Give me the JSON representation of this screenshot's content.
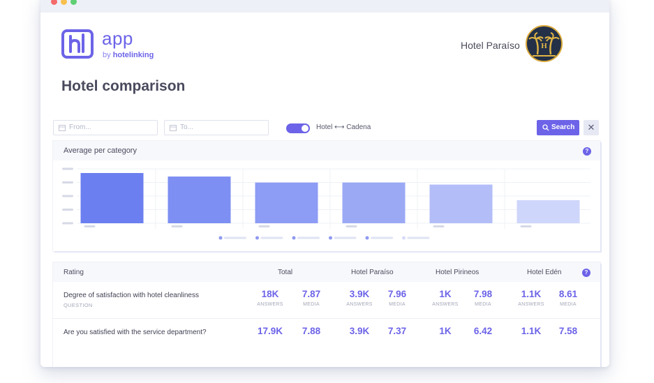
{
  "window": {
    "controls": [
      "close",
      "minimize",
      "maximize"
    ]
  },
  "logo": {
    "mark": "hl",
    "app": "app",
    "by": "by",
    "brand": "hotelinking"
  },
  "hotel": {
    "name": "Hotel Paraíso",
    "avatar_icon": "palm-trees-icon",
    "avatar_letter": "H"
  },
  "page_title": "Hotel comparison",
  "filters": {
    "from_placeholder": "From...",
    "to_placeholder": "To...",
    "toggle_label": "Hotel ⟷ Cadena",
    "toggle_on": true,
    "search_label": "Search",
    "clear_label": "✕"
  },
  "chart_card": {
    "title": "Average per category",
    "help": "?"
  },
  "chart_data": {
    "type": "bar",
    "values": [
      1.0,
      0.93,
      0.81,
      0.81,
      0.77,
      0.46
    ],
    "colors": [
      "#6b7ff0",
      "#7d8ff2",
      "#8d9cf4",
      "#9ba9f5",
      "#b3bef8",
      "#cfd6fb"
    ],
    "grid": true,
    "legend_placement": "bottom"
  },
  "table": {
    "headers": {
      "rating": "Rating",
      "total": "Total",
      "h1": "Hotel Paraíso",
      "h2": "Hotel Pirineos",
      "h3": "Hotel Edén"
    },
    "help": "?",
    "rows": [
      {
        "question": "Degree of satisfaction with hotel cleanliness",
        "sub": "QUESTION",
        "total_answers": "18K",
        "total_media": "7.87",
        "h1_answers": "3.9K",
        "h1_media": "7.96",
        "h2_answers": "1K",
        "h2_media": "7.98",
        "h3_answers": "1.1K",
        "h3_media": "8.61"
      },
      {
        "question": "Are you satisfied with the service department?",
        "total_answers": "17.9K",
        "total_media": "7.88",
        "h1_answers": "3.9K",
        "h1_media": "7.37",
        "h2_answers": "1K",
        "h2_media": "6.42",
        "h3_answers": "1.1K",
        "h3_media": "7.58"
      }
    ],
    "answers_label": "ANSWERS",
    "media_label": "MEDIA"
  },
  "colors": {
    "accent": "#6c63e8",
    "header_bg": "#f7f8fc"
  }
}
